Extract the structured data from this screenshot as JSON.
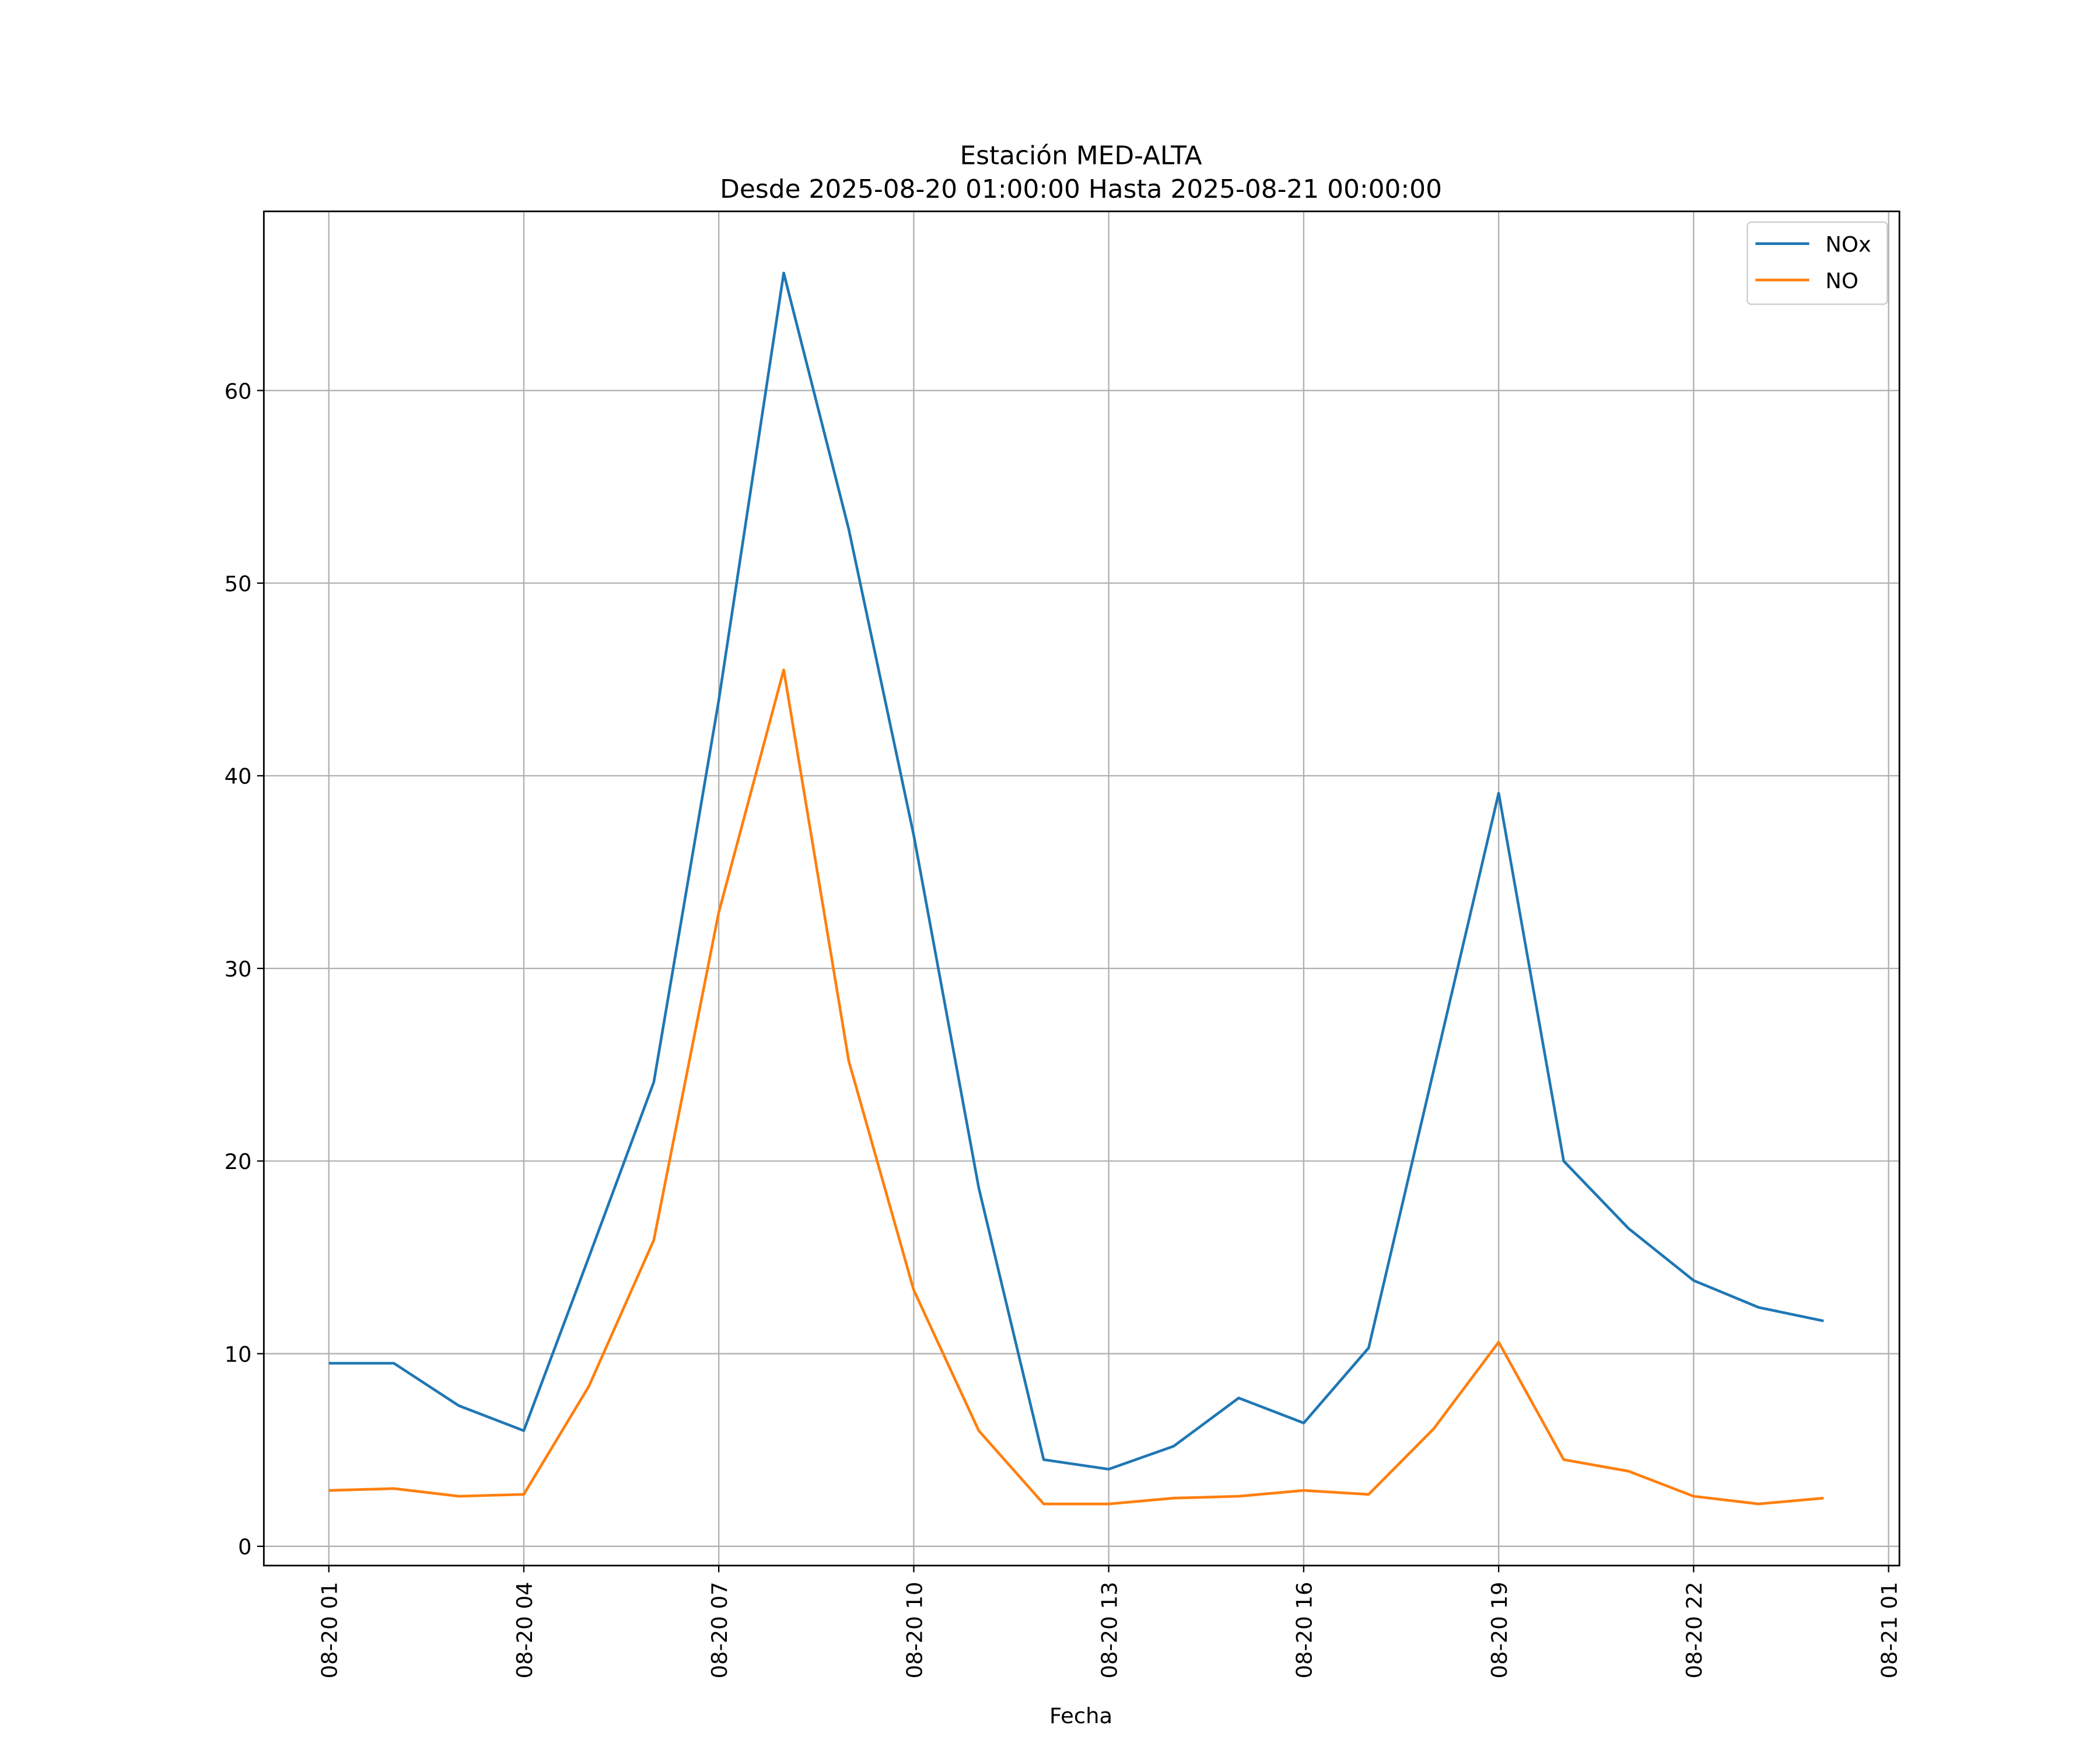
{
  "chart_data": {
    "type": "line",
    "title_line1": "Estación MED-ALTA",
    "title_line2": "Desde 2025-08-20 01:00:00 Hasta 2025-08-21 00:00:00",
    "xlabel": "Fecha",
    "ylabel": "",
    "ylim": [
      -1,
      69.3
    ],
    "xlim": [
      "2025-08-20 00:00",
      "2025-08-21 01:10"
    ],
    "grid": true,
    "legend_placement": "top-right",
    "yticks": [
      0,
      10,
      20,
      30,
      40,
      50,
      60
    ],
    "xticks": [
      {
        "t": "2025-08-20 01:00",
        "label": "08-20 01"
      },
      {
        "t": "2025-08-20 04:00",
        "label": "08-20 04"
      },
      {
        "t": "2025-08-20 07:00",
        "label": "08-20 07"
      },
      {
        "t": "2025-08-20 10:00",
        "label": "08-20 10"
      },
      {
        "t": "2025-08-20 13:00",
        "label": "08-20 13"
      },
      {
        "t": "2025-08-20 16:00",
        "label": "08-20 16"
      },
      {
        "t": "2025-08-20 19:00",
        "label": "08-20 19"
      },
      {
        "t": "2025-08-20 22:00",
        "label": "08-20 22"
      },
      {
        "t": "2025-08-21 01:00",
        "label": "08-21 01"
      }
    ],
    "x": [
      "2025-08-20 01:00",
      "2025-08-20 02:00",
      "2025-08-20 03:00",
      "2025-08-20 04:00",
      "2025-08-20 05:00",
      "2025-08-20 06:00",
      "2025-08-20 07:00",
      "2025-08-20 08:00",
      "2025-08-20 09:00",
      "2025-08-20 10:00",
      "2025-08-20 11:00",
      "2025-08-20 12:00",
      "2025-08-20 13:00",
      "2025-08-20 14:00",
      "2025-08-20 15:00",
      "2025-08-20 16:00",
      "2025-08-20 17:00",
      "2025-08-20 18:00",
      "2025-08-20 19:00",
      "2025-08-20 20:00",
      "2025-08-20 21:00",
      "2025-08-20 22:00",
      "2025-08-20 23:00",
      "2025-08-21 00:00"
    ],
    "series": [
      {
        "name": "NOx",
        "color": "#1f77b4",
        "values": [
          9.5,
          9.5,
          7.3,
          6.0,
          15.0,
          24.1,
          43.9,
          66.1,
          52.8,
          36.9,
          18.6,
          4.5,
          4.0,
          5.2,
          7.7,
          6.4,
          10.3,
          24.7,
          39.1,
          20.0,
          16.5,
          13.8,
          12.4,
          11.7
        ]
      },
      {
        "name": "NO",
        "color": "#ff7f0e",
        "values": [
          2.9,
          3.0,
          2.6,
          2.7,
          8.3,
          15.9,
          32.9,
          45.5,
          25.2,
          13.3,
          6.0,
          2.2,
          2.2,
          2.5,
          2.6,
          2.9,
          2.7,
          6.1,
          10.6,
          4.5,
          3.9,
          2.6,
          2.2,
          2.5
        ]
      }
    ]
  }
}
